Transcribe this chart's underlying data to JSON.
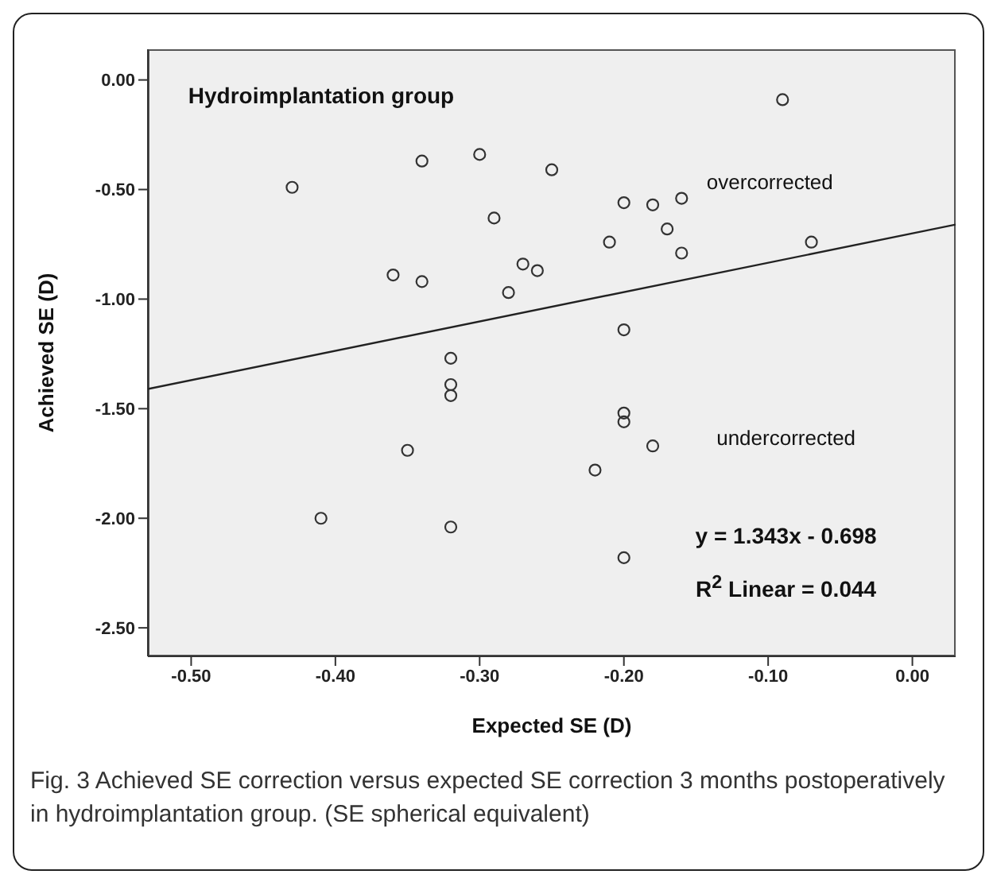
{
  "chart_data": {
    "type": "scatter",
    "xlabel": "Expected SE (D)",
    "ylabel": "Achieved SE (D)",
    "x": [
      -0.43,
      -0.34,
      -0.3,
      -0.29,
      -0.36,
      -0.34,
      -0.28,
      -0.32,
      -0.32,
      -0.32,
      -0.09,
      -0.25,
      -0.27,
      -0.26,
      -0.2,
      -0.18,
      -0.16,
      -0.17,
      -0.21,
      -0.16,
      -0.07,
      -0.2,
      -0.2,
      -0.2,
      -0.35,
      -0.41,
      -0.32,
      -0.18,
      -0.22,
      -0.2
    ],
    "series": [
      {
        "type": "scatter",
        "color": "#333333",
        "marker": "circle",
        "values": [
          -0.49,
          -0.37,
          -0.34,
          -0.63,
          -0.89,
          -0.92,
          -0.97,
          -1.27,
          -1.39,
          -1.44,
          -0.09,
          -0.41,
          -0.84,
          -0.87,
          -0.56,
          -0.57,
          -0.54,
          -0.68,
          -0.74,
          -0.79,
          -0.74,
          -1.14,
          -1.52,
          -1.56,
          -1.69,
          -2.0,
          -2.04,
          -1.67,
          -1.78,
          -2.18
        ]
      },
      {
        "type": "line",
        "color": "#222222",
        "line_style": "solid",
        "marker": "none",
        "x": [
          -0.53,
          0.03
        ],
        "values": [
          -1.41,
          -0.66
        ]
      }
    ],
    "xlim": [
      -0.53,
      0.03
    ],
    "xticks": [
      {
        "value": -0.5,
        "label": "-0.50"
      },
      {
        "value": -0.4,
        "label": "-0.40"
      },
      {
        "value": -0.3,
        "label": "-0.30"
      },
      {
        "value": -0.2,
        "label": "-0.20"
      },
      {
        "value": -0.1,
        "label": "-0.10"
      },
      {
        "value": 0,
        "label": "0.00"
      }
    ],
    "ylim": [
      -2.63,
      0.14
    ],
    "yticks": [
      {
        "value": 0,
        "label": "0.00"
      },
      {
        "value": -0.5,
        "label": "-0.50"
      },
      {
        "value": -1,
        "label": "-1.00"
      },
      {
        "value": -1.5,
        "label": "-1.50"
      },
      {
        "value": -2,
        "label": "-2.00"
      },
      {
        "value": -2.5,
        "label": "-2.50"
      }
    ],
    "grid": false,
    "annotations": [
      "Hydroimplantation group",
      "overcorrected",
      "undercorrected",
      "y = 1.343x - 0.698",
      "R$^{2}$ Linear = 0.044",
      "Fig. 3 Achieved SE correction versus expected SE correction 3 months postoperatively in hydroimplantation group. (SE spherical equivalent)"
    ]
  }
}
